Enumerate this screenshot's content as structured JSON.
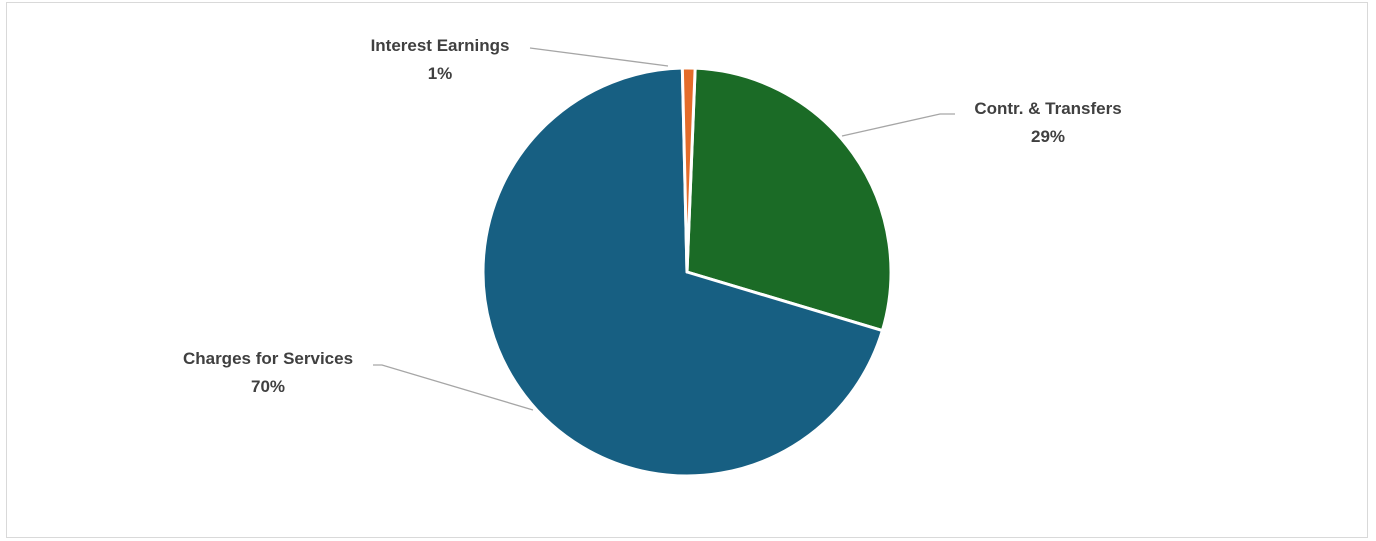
{
  "chart_data": {
    "type": "pie",
    "slices": [
      {
        "label": "Contr. & Transfers",
        "value": 29,
        "display": "29%",
        "color": "#1b6b26"
      },
      {
        "label": "Charges for Services",
        "value": 70,
        "display": "70%",
        "color": "#175f82"
      },
      {
        "label": "Interest Earnings",
        "value": 1,
        "display": "1%",
        "color": "#e46c2a"
      }
    ]
  }
}
